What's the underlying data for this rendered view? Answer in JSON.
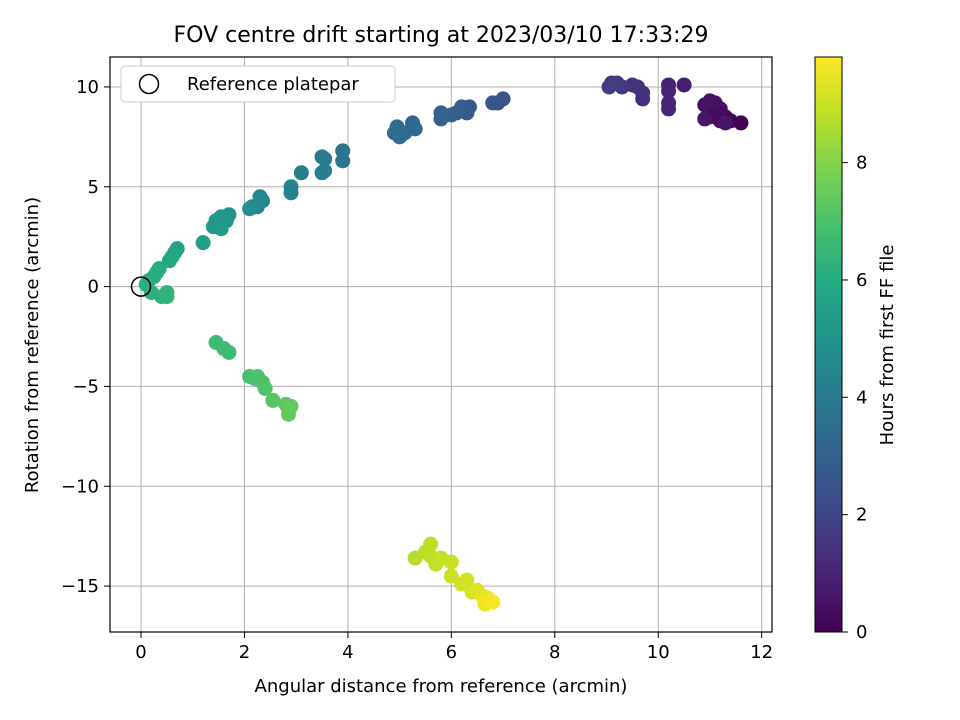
{
  "chart_data": {
    "type": "scatter",
    "title": "FOV centre drift starting at 2023/03/10 17:33:29",
    "xlabel": "Angular distance from reference (arcmin)",
    "ylabel": "Rotation from reference (arcmin)",
    "xlim": [
      -0.6,
      12.2
    ],
    "ylim": [
      -17.3,
      11.5
    ],
    "xticks": [
      0,
      2,
      4,
      6,
      8,
      10,
      12
    ],
    "xtick_labels": [
      "0",
      "2",
      "4",
      "6",
      "8",
      "10",
      "12"
    ],
    "yticks": [
      10,
      5,
      0,
      -5,
      -10,
      -15
    ],
    "ytick_labels": [
      "10",
      "5",
      "0",
      "−5",
      "−10",
      "−15"
    ],
    "grid": true,
    "legend": {
      "placement": "top-left",
      "entries": [
        "Reference platepar"
      ]
    },
    "reference_point": {
      "x": 0,
      "y": 0
    },
    "colorbar": {
      "label": "Hours from first FF file",
      "colormap": "viridis",
      "range": [
        0,
        9.8
      ],
      "ticks": [
        0,
        2,
        4,
        6,
        8
      ],
      "tick_labels": [
        "0",
        "2",
        "4",
        "6",
        "8"
      ]
    },
    "points": [
      {
        "x": 11.6,
        "y": 8.2,
        "t": 0.05
      },
      {
        "x": 11.4,
        "y": 8.3,
        "t": 0.1
      },
      {
        "x": 11.3,
        "y": 8.5,
        "t": 0.15
      },
      {
        "x": 11.2,
        "y": 8.3,
        "t": 0.2
      },
      {
        "x": 11.1,
        "y": 8.6,
        "t": 0.25
      },
      {
        "x": 11.0,
        "y": 8.5,
        "t": 0.3
      },
      {
        "x": 11.2,
        "y": 8.9,
        "t": 0.35
      },
      {
        "x": 11.1,
        "y": 9.2,
        "t": 0.4
      },
      {
        "x": 11.0,
        "y": 9.3,
        "t": 0.45
      },
      {
        "x": 10.9,
        "y": 9.1,
        "t": 0.5
      },
      {
        "x": 10.9,
        "y": 8.4,
        "t": 0.55
      },
      {
        "x": 11.3,
        "y": 8.2,
        "t": 0.6
      },
      {
        "x": 10.5,
        "y": 10.1,
        "t": 0.8
      },
      {
        "x": 10.2,
        "y": 10.1,
        "t": 0.9
      },
      {
        "x": 10.2,
        "y": 9.8,
        "t": 0.95
      },
      {
        "x": 10.2,
        "y": 9.2,
        "t": 1.0
      },
      {
        "x": 10.2,
        "y": 8.9,
        "t": 1.05
      },
      {
        "x": 9.7,
        "y": 9.4,
        "t": 1.3
      },
      {
        "x": 9.7,
        "y": 9.7,
        "t": 1.35
      },
      {
        "x": 9.6,
        "y": 10.0,
        "t": 1.4
      },
      {
        "x": 9.5,
        "y": 10.1,
        "t": 1.45
      },
      {
        "x": 9.3,
        "y": 10.0,
        "t": 1.55
      },
      {
        "x": 9.2,
        "y": 10.2,
        "t": 1.65
      },
      {
        "x": 9.1,
        "y": 10.2,
        "t": 1.7
      },
      {
        "x": 9.05,
        "y": 10.0,
        "t": 1.75
      },
      {
        "x": 7.0,
        "y": 9.4,
        "t": 2.5
      },
      {
        "x": 6.9,
        "y": 9.2,
        "t": 2.55
      },
      {
        "x": 6.8,
        "y": 9.2,
        "t": 2.6
      },
      {
        "x": 6.35,
        "y": 9.0,
        "t": 2.75
      },
      {
        "x": 6.3,
        "y": 8.7,
        "t": 2.8
      },
      {
        "x": 6.2,
        "y": 9.0,
        "t": 2.85
      },
      {
        "x": 6.1,
        "y": 8.7,
        "t": 2.9
      },
      {
        "x": 6.0,
        "y": 8.6,
        "t": 2.95
      },
      {
        "x": 5.8,
        "y": 8.7,
        "t": 3.0
      },
      {
        "x": 5.8,
        "y": 8.4,
        "t": 3.05
      },
      {
        "x": 5.3,
        "y": 7.9,
        "t": 3.3
      },
      {
        "x": 5.25,
        "y": 8.2,
        "t": 3.35
      },
      {
        "x": 5.1,
        "y": 7.7,
        "t": 3.4
      },
      {
        "x": 5.0,
        "y": 7.5,
        "t": 3.45
      },
      {
        "x": 4.95,
        "y": 8.0,
        "t": 3.5
      },
      {
        "x": 4.9,
        "y": 7.7,
        "t": 3.55
      },
      {
        "x": 3.9,
        "y": 6.8,
        "t": 3.8
      },
      {
        "x": 3.9,
        "y": 6.3,
        "t": 3.85
      },
      {
        "x": 3.55,
        "y": 6.4,
        "t": 3.95
      },
      {
        "x": 3.5,
        "y": 6.5,
        "t": 4.0
      },
      {
        "x": 3.55,
        "y": 5.8,
        "t": 4.05
      },
      {
        "x": 3.5,
        "y": 5.7,
        "t": 4.1
      },
      {
        "x": 3.1,
        "y": 5.7,
        "t": 4.2
      },
      {
        "x": 2.9,
        "y": 5.0,
        "t": 4.3
      },
      {
        "x": 2.9,
        "y": 4.7,
        "t": 4.35
      },
      {
        "x": 2.35,
        "y": 4.3,
        "t": 4.5
      },
      {
        "x": 2.3,
        "y": 4.5,
        "t": 4.55
      },
      {
        "x": 2.25,
        "y": 4.0,
        "t": 4.6
      },
      {
        "x": 2.15,
        "y": 4.0,
        "t": 4.65
      },
      {
        "x": 2.1,
        "y": 3.9,
        "t": 4.7
      },
      {
        "x": 1.7,
        "y": 3.6,
        "t": 5.0
      },
      {
        "x": 1.65,
        "y": 3.3,
        "t": 5.05
      },
      {
        "x": 1.55,
        "y": 3.5,
        "t": 5.1
      },
      {
        "x": 1.5,
        "y": 3.2,
        "t": 5.15
      },
      {
        "x": 1.45,
        "y": 3.3,
        "t": 5.2
      },
      {
        "x": 1.4,
        "y": 3.0,
        "t": 5.25
      },
      {
        "x": 1.55,
        "y": 2.9,
        "t": 5.3
      },
      {
        "x": 1.2,
        "y": 2.2,
        "t": 5.45
      },
      {
        "x": 0.7,
        "y": 1.9,
        "t": 5.7
      },
      {
        "x": 0.65,
        "y": 1.7,
        "t": 5.75
      },
      {
        "x": 0.6,
        "y": 1.5,
        "t": 5.8
      },
      {
        "x": 0.55,
        "y": 1.3,
        "t": 5.85
      },
      {
        "x": 0.35,
        "y": 0.9,
        "t": 5.95
      },
      {
        "x": 0.3,
        "y": 0.7,
        "t": 6.0
      },
      {
        "x": 0.25,
        "y": 0.5,
        "t": 6.05
      },
      {
        "x": 0.15,
        "y": 0.3,
        "t": 6.1
      },
      {
        "x": 0.1,
        "y": 0.1,
        "t": 6.15
      },
      {
        "x": 0.2,
        "y": -0.3,
        "t": 6.2
      },
      {
        "x": 0.4,
        "y": -0.5,
        "t": 6.25
      },
      {
        "x": 0.5,
        "y": -0.5,
        "t": 6.3
      },
      {
        "x": 0.5,
        "y": -0.3,
        "t": 6.35
      },
      {
        "x": 1.45,
        "y": -2.8,
        "t": 6.6
      },
      {
        "x": 1.6,
        "y": -3.1,
        "t": 6.65
      },
      {
        "x": 1.7,
        "y": -3.3,
        "t": 6.7
      },
      {
        "x": 2.1,
        "y": -4.5,
        "t": 6.9
      },
      {
        "x": 2.2,
        "y": -4.6,
        "t": 6.95
      },
      {
        "x": 2.25,
        "y": -4.5,
        "t": 7.0
      },
      {
        "x": 2.35,
        "y": -4.8,
        "t": 7.05
      },
      {
        "x": 2.4,
        "y": -5.1,
        "t": 7.1
      },
      {
        "x": 2.55,
        "y": -5.7,
        "t": 7.2
      },
      {
        "x": 2.8,
        "y": -5.9,
        "t": 7.3
      },
      {
        "x": 2.85,
        "y": -6.1,
        "t": 7.35
      },
      {
        "x": 2.85,
        "y": -6.4,
        "t": 7.4
      },
      {
        "x": 2.9,
        "y": -6.0,
        "t": 7.45
      },
      {
        "x": 5.3,
        "y": -13.6,
        "t": 8.7
      },
      {
        "x": 5.5,
        "y": -13.3,
        "t": 8.75
      },
      {
        "x": 5.6,
        "y": -12.9,
        "t": 8.8
      },
      {
        "x": 5.6,
        "y": -13.5,
        "t": 8.85
      },
      {
        "x": 5.7,
        "y": -13.9,
        "t": 8.9
      },
      {
        "x": 5.8,
        "y": -13.6,
        "t": 8.95
      },
      {
        "x": 6.0,
        "y": -13.8,
        "t": 9.0
      },
      {
        "x": 6.0,
        "y": -14.5,
        "t": 9.05
      },
      {
        "x": 6.2,
        "y": -14.9,
        "t": 9.1
      },
      {
        "x": 6.3,
        "y": -14.7,
        "t": 9.15
      },
      {
        "x": 6.4,
        "y": -15.3,
        "t": 9.2
      },
      {
        "x": 6.5,
        "y": -15.2,
        "t": 9.3
      },
      {
        "x": 6.6,
        "y": -15.5,
        "t": 9.4
      },
      {
        "x": 6.7,
        "y": -15.6,
        "t": 9.5
      },
      {
        "x": 6.65,
        "y": -15.9,
        "t": 9.6
      },
      {
        "x": 6.8,
        "y": -15.8,
        "t": 9.7
      }
    ]
  }
}
